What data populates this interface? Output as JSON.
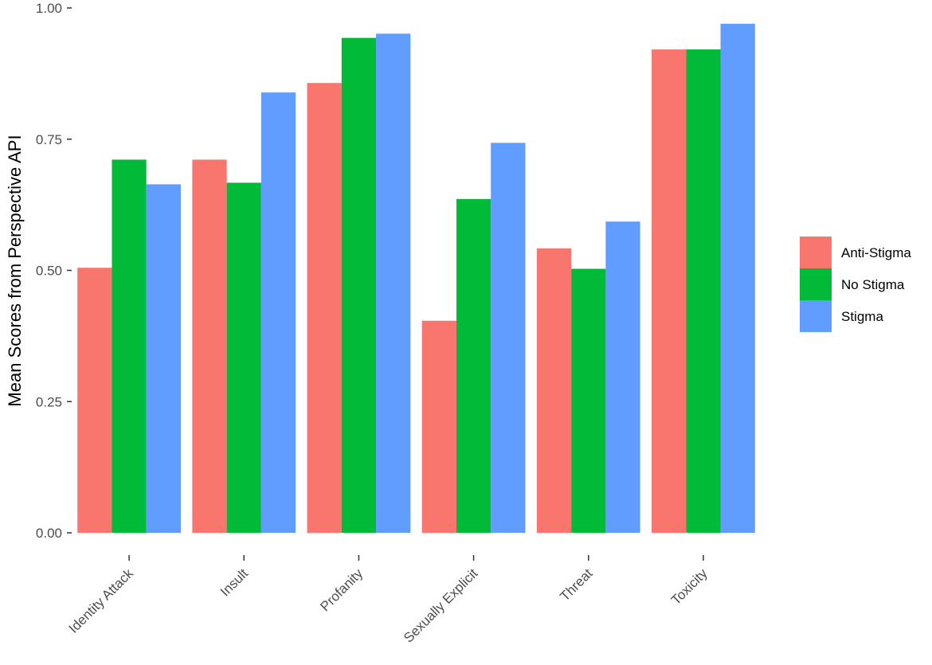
{
  "chart_data": {
    "type": "bar",
    "title": "",
    "xlabel": "",
    "ylabel": "Mean Scores from Perspective API",
    "ylim": [
      0,
      1
    ],
    "yticks": [
      0,
      0.25,
      0.5,
      0.75,
      1
    ],
    "ytick_labels": [
      "0.00",
      "0.25",
      "0.50",
      "0.75",
      "1.00"
    ],
    "categories": [
      "Identity Attack",
      "Insult",
      "Profanity",
      "Sexually Explicit",
      "Threat",
      "Toxicity"
    ],
    "series": [
      {
        "name": "Anti-Stigma",
        "color": "#F8766D",
        "values": [
          0.505,
          0.711,
          0.857,
          0.404,
          0.542,
          0.921
        ]
      },
      {
        "name": "No Stigma",
        "color": "#00BA38",
        "values": [
          0.711,
          0.667,
          0.943,
          0.636,
          0.503,
          0.921
        ]
      },
      {
        "name": "Stigma",
        "color": "#619CFF",
        "values": [
          0.664,
          0.839,
          0.951,
          0.743,
          0.593,
          0.97
        ]
      }
    ],
    "grid": false,
    "legend_position": "right"
  }
}
